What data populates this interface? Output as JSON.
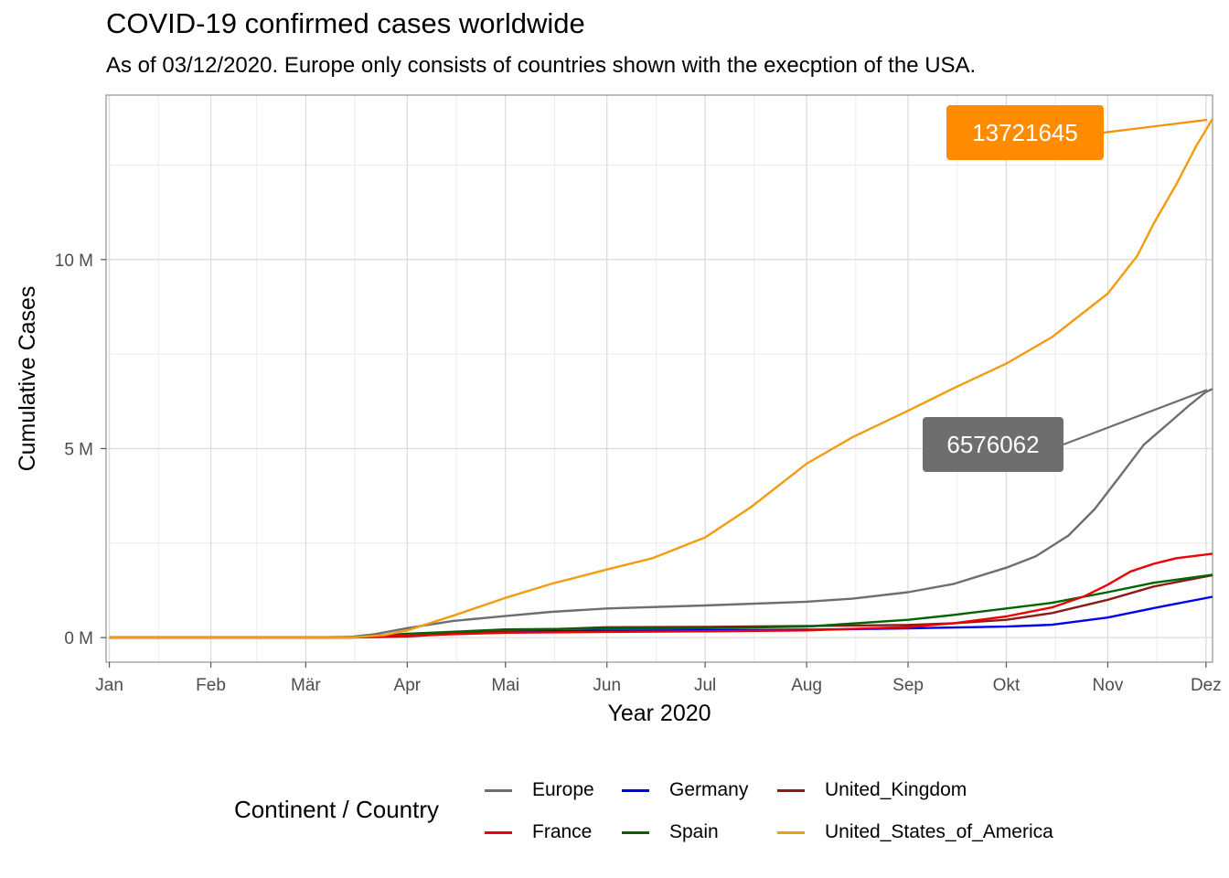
{
  "chart_data": {
    "type": "line",
    "title": "COVID-19 confirmed cases worldwide",
    "subtitle": "As of 03/12/2020. Europe only consists of countries shown with the execption of the USA.",
    "xlabel": "Year 2020",
    "ylabel": "Cumulative Cases",
    "x_ticks": [
      "Jan",
      "Feb",
      "Mär",
      "Apr",
      "Mai",
      "Jun",
      "Jul",
      "Aug",
      "Sep",
      "Okt",
      "Nov",
      "Dez"
    ],
    "y_ticks": [
      {
        "value": 0,
        "label": "0 M"
      },
      {
        "value": 5000000,
        "label": "5 M"
      },
      {
        "value": 10000000,
        "label": "10 M"
      }
    ],
    "xlim": [
      "2019-12-31",
      "2020-12-03"
    ],
    "ylim": [
      -650000,
      14350000
    ],
    "grid": true,
    "legend": {
      "title": "Continent / Country",
      "position": "bottom"
    },
    "series": [
      {
        "name": "Europe",
        "color": "#6e6e6e",
        "points": [
          [
            "2020-01-01",
            0
          ],
          [
            "2020-03-01",
            1000
          ],
          [
            "2020-03-15",
            20000
          ],
          [
            "2020-03-22",
            90000
          ],
          [
            "2020-04-01",
            250000
          ],
          [
            "2020-04-15",
            440000
          ],
          [
            "2020-05-01",
            570000
          ],
          [
            "2020-05-15",
            680000
          ],
          [
            "2020-06-01",
            770000
          ],
          [
            "2020-07-01",
            850000
          ],
          [
            "2020-08-01",
            950000
          ],
          [
            "2020-08-15",
            1030000
          ],
          [
            "2020-09-01",
            1200000
          ],
          [
            "2020-09-15",
            1420000
          ],
          [
            "2020-10-01",
            1850000
          ],
          [
            "2020-10-10",
            2150000
          ],
          [
            "2020-10-20",
            2700000
          ],
          [
            "2020-10-28",
            3400000
          ],
          [
            "2020-11-05",
            4300000
          ],
          [
            "2020-11-12",
            5100000
          ],
          [
            "2020-11-20",
            5700000
          ],
          [
            "2020-11-26",
            6150000
          ],
          [
            "2020-12-01",
            6500000
          ],
          [
            "2020-12-03",
            6576062
          ]
        ]
      },
      {
        "name": "France",
        "color": "#ee0000",
        "points": [
          [
            "2020-01-01",
            0
          ],
          [
            "2020-03-01",
            100
          ],
          [
            "2020-03-15",
            5000
          ],
          [
            "2020-04-01",
            55000
          ],
          [
            "2020-05-01",
            130000
          ],
          [
            "2020-06-01",
            150000
          ],
          [
            "2020-07-01",
            165000
          ],
          [
            "2020-08-01",
            190000
          ],
          [
            "2020-09-01",
            280000
          ],
          [
            "2020-09-15",
            380000
          ],
          [
            "2020-10-01",
            560000
          ],
          [
            "2020-10-15",
            800000
          ],
          [
            "2020-10-25",
            1100000
          ],
          [
            "2020-11-01",
            1400000
          ],
          [
            "2020-11-08",
            1750000
          ],
          [
            "2020-11-15",
            1950000
          ],
          [
            "2020-11-22",
            2100000
          ],
          [
            "2020-12-03",
            2220000
          ]
        ]
      },
      {
        "name": "Germany",
        "color": "#0000ee",
        "points": [
          [
            "2020-01-01",
            0
          ],
          [
            "2020-03-01",
            100
          ],
          [
            "2020-03-15",
            6000
          ],
          [
            "2020-04-01",
            70000
          ],
          [
            "2020-05-01",
            160000
          ],
          [
            "2020-06-01",
            183000
          ],
          [
            "2020-07-01",
            195000
          ],
          [
            "2020-08-01",
            210000
          ],
          [
            "2020-09-01",
            245000
          ],
          [
            "2020-10-01",
            290000
          ],
          [
            "2020-10-15",
            340000
          ],
          [
            "2020-11-01",
            530000
          ],
          [
            "2020-11-15",
            780000
          ],
          [
            "2020-12-03",
            1080000
          ]
        ]
      },
      {
        "name": "Spain",
        "color": "#006400",
        "points": [
          [
            "2020-01-01",
            0
          ],
          [
            "2020-03-01",
            100
          ],
          [
            "2020-03-15",
            8000
          ],
          [
            "2020-04-01",
            100000
          ],
          [
            "2020-05-01",
            215000
          ],
          [
            "2020-06-01",
            240000
          ],
          [
            "2020-07-01",
            250000
          ],
          [
            "2020-08-01",
            290000
          ],
          [
            "2020-09-01",
            470000
          ],
          [
            "2020-09-15",
            600000
          ],
          [
            "2020-10-01",
            770000
          ],
          [
            "2020-10-15",
            920000
          ],
          [
            "2020-11-01",
            1200000
          ],
          [
            "2020-11-15",
            1450000
          ],
          [
            "2020-12-03",
            1660000
          ]
        ]
      },
      {
        "name": "United_Kingdom",
        "color": "#8b1a1a",
        "points": [
          [
            "2020-01-01",
            0
          ],
          [
            "2020-03-01",
            50
          ],
          [
            "2020-03-15",
            1500
          ],
          [
            "2020-04-01",
            30000
          ],
          [
            "2020-05-01",
            180000
          ],
          [
            "2020-06-01",
            275000
          ],
          [
            "2020-07-01",
            285000
          ],
          [
            "2020-08-01",
            305000
          ],
          [
            "2020-09-01",
            335000
          ],
          [
            "2020-09-15",
            380000
          ],
          [
            "2020-10-01",
            470000
          ],
          [
            "2020-10-15",
            650000
          ],
          [
            "2020-11-01",
            1000000
          ],
          [
            "2020-11-15",
            1350000
          ],
          [
            "2020-12-03",
            1650000
          ]
        ]
      },
      {
        "name": "United_States_of_America",
        "color": "#f39c12",
        "points": [
          [
            "2020-01-01",
            0
          ],
          [
            "2020-03-01",
            100
          ],
          [
            "2020-03-15",
            3000
          ],
          [
            "2020-03-25",
            65000
          ],
          [
            "2020-04-01",
            190000
          ],
          [
            "2020-04-15",
            580000
          ],
          [
            "2020-05-01",
            1050000
          ],
          [
            "2020-05-15",
            1420000
          ],
          [
            "2020-06-01",
            1800000
          ],
          [
            "2020-06-15",
            2100000
          ],
          [
            "2020-07-01",
            2650000
          ],
          [
            "2020-07-15",
            3450000
          ],
          [
            "2020-08-01",
            4600000
          ],
          [
            "2020-08-15",
            5300000
          ],
          [
            "2020-09-01",
            6000000
          ],
          [
            "2020-09-15",
            6600000
          ],
          [
            "2020-10-01",
            7250000
          ],
          [
            "2020-10-15",
            7950000
          ],
          [
            "2020-11-01",
            9100000
          ],
          [
            "2020-11-10",
            10100000
          ],
          [
            "2020-11-15",
            10950000
          ],
          [
            "2020-11-22",
            12000000
          ],
          [
            "2020-11-28",
            13000000
          ],
          [
            "2020-12-03",
            13721645
          ]
        ]
      }
    ],
    "annotations": [
      {
        "label": "13721645",
        "series": "United_States_of_America",
        "color": "#ff8c00",
        "value": 13721645
      },
      {
        "label": "6576062",
        "series": "Europe",
        "color": "#6e6e6e",
        "value": 6576062
      }
    ]
  }
}
